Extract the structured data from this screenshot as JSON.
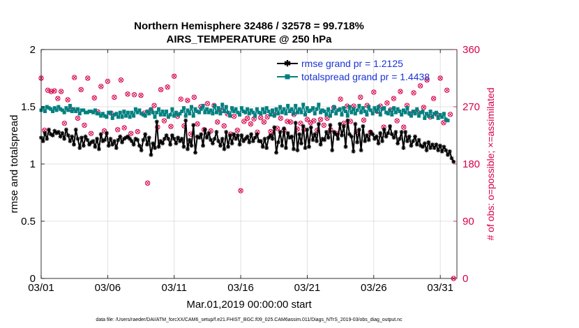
{
  "chart_data": {
    "type": "line",
    "title_line1": "Northern Hemisphere 32486 / 32578 = 99.718%",
    "title_line2": "AIRS_TEMPERATURE @ 250 hPa",
    "xlabel": "Mar.01,2019 00:00:00 start",
    "ylabel": "rmse and totalspread",
    "y2label": "# of obs: o=possible; ×=assimilated",
    "xlim": [
      0,
      31.25
    ],
    "ylim": [
      0,
      2
    ],
    "y2lim": [
      0,
      360
    ],
    "x_ticks": [
      {
        "x": 0,
        "label": "03/01"
      },
      {
        "x": 5,
        "label": "03/06"
      },
      {
        "x": 10,
        "label": "03/11"
      },
      {
        "x": 15,
        "label": "03/16"
      },
      {
        "x": 20,
        "label": "03/21"
      },
      {
        "x": 25,
        "label": "03/26"
      },
      {
        "x": 30,
        "label": "03/31"
      }
    ],
    "y_ticks": [
      {
        "v": 0,
        "label": "0"
      },
      {
        "v": 0.5,
        "label": "0.5"
      },
      {
        "v": 1,
        "label": "1"
      },
      {
        "v": 1.5,
        "label": "1.5"
      },
      {
        "v": 2,
        "label": "2"
      }
    ],
    "y2_ticks": [
      {
        "v": 0,
        "label": "0"
      },
      {
        "v": 90,
        "label": "90"
      },
      {
        "v": 180,
        "label": "180"
      },
      {
        "v": 270,
        "label": "270"
      },
      {
        "v": 360,
        "label": "360"
      }
    ],
    "legend": [
      {
        "label": "rmse grand pr = 1.2125",
        "color": "#000000"
      },
      {
        "label": "totalspread grand pr = 1.4438",
        "color": "#008080"
      }
    ],
    "rmse": [
      1.23,
      1.2,
      1.27,
      1.22,
      1.3,
      1.26,
      1.25,
      1.29,
      1.27,
      1.28,
      1.24,
      1.27,
      1.22,
      1.3,
      1.25,
      1.2,
      1.24,
      1.17,
      1.3,
      1.22,
      1.14,
      1.23,
      1.16,
      1.24,
      1.21,
      1.17,
      1.19,
      1.2,
      1.15,
      1.22,
      1.13,
      1.26,
      1.2,
      1.21,
      1.27,
      1.16,
      1.22,
      1.17,
      1.2,
      1.14,
      1.21,
      1.24,
      1.19,
      1.22,
      1.23,
      1.24,
      1.22,
      1.2,
      1.17,
      1.22,
      1.21,
      1.16,
      1.12,
      1.21,
      1.26,
      1.17,
      1.23,
      1.08,
      1.18,
      1.14,
      1.37,
      1.15,
      1.2,
      1.18,
      1.22,
      1.25,
      1.22,
      1.17,
      1.25,
      1.22,
      1.18,
      1.23,
      1.2,
      1.22,
      1.15,
      1.38,
      1.13,
      1.21,
      1.16,
      1.34,
      1.1,
      1.24,
      1.23,
      1.26,
      1.16,
      1.3,
      1.23,
      1.27,
      1.21,
      1.18,
      1.22,
      1.28,
      1.2,
      1.16,
      1.22,
      1.13,
      1.28,
      1.15,
      1.25,
      1.18,
      1.26,
      1.22,
      1.25,
      1.17,
      1.25,
      1.2,
      1.22,
      1.24,
      1.19,
      1.26,
      1.2,
      1.23,
      1.26,
      1.2,
      1.2,
      1.15,
      1.22,
      1.14,
      1.23,
      1.25,
      1.22,
      1.32,
      1.1,
      1.19,
      1.28,
      1.16,
      1.31,
      1.14,
      1.27,
      1.23,
      1.24,
      1.13,
      1.36,
      1.12,
      1.26,
      1.18,
      1.33,
      1.14,
      1.3,
      1.15,
      1.32,
      1.21,
      1.26,
      1.2,
      1.35,
      1.17,
      1.22,
      1.21,
      1.28,
      1.23,
      1.34,
      1.12,
      1.28,
      1.26,
      1.22,
      1.35,
      1.25,
      1.33,
      1.15,
      1.38,
      1.26,
      1.24,
      1.11,
      1.35,
      1.19,
      1.3,
      1.12,
      1.33,
      1.2,
      1.25,
      1.21,
      1.28,
      1.26,
      1.22,
      1.24,
      1.18,
      1.27,
      1.2,
      1.3,
      1.24,
      1.27,
      1.33,
      1.26,
      1.23,
      1.28,
      1.18,
      1.22,
      1.28,
      1.14,
      1.28,
      1.2,
      1.24,
      1.16,
      1.2,
      1.24,
      1.17,
      1.21,
      1.16,
      1.15,
      1.18,
      1.12,
      1.19,
      1.14,
      1.17,
      1.14,
      1.17,
      1.12,
      1.16,
      1.11,
      1.15,
      1.12,
      1.08,
      1.11,
      1.05,
      1.02
    ],
    "totalspread": [
      1.47,
      1.49,
      1.46,
      1.5,
      1.49,
      1.48,
      1.46,
      1.49,
      1.47,
      1.5,
      1.48,
      1.47,
      1.45,
      1.49,
      1.47,
      1.51,
      1.46,
      1.48,
      1.46,
      1.48,
      1.44,
      1.47,
      1.47,
      1.45,
      1.45,
      1.46,
      1.46,
      1.45,
      1.47,
      1.44,
      1.44,
      1.42,
      1.44,
      1.42,
      1.41,
      1.45,
      1.45,
      1.4,
      1.43,
      1.44,
      1.41,
      1.45,
      1.41,
      1.46,
      1.42,
      1.45,
      1.41,
      1.45,
      1.42,
      1.48,
      1.45,
      1.47,
      1.44,
      1.43,
      1.42,
      1.46,
      1.44,
      1.48,
      1.45,
      1.41,
      1.45,
      1.48,
      1.43,
      1.46,
      1.43,
      1.46,
      1.41,
      1.43,
      1.48,
      1.42,
      1.45,
      1.43,
      1.44,
      1.46,
      1.49,
      1.42,
      1.47,
      1.44,
      1.5,
      1.42,
      1.48,
      1.46,
      1.45,
      1.48,
      1.51,
      1.45,
      1.48,
      1.45,
      1.47,
      1.44,
      1.51,
      1.45,
      1.49,
      1.44,
      1.52,
      1.46,
      1.5,
      1.45,
      1.42,
      1.49,
      1.46,
      1.48,
      1.45,
      1.43,
      1.49,
      1.46,
      1.45,
      1.48,
      1.44,
      1.47,
      1.45,
      1.42,
      1.48,
      1.45,
      1.44,
      1.48,
      1.45,
      1.49,
      1.46,
      1.43,
      1.47,
      1.42,
      1.48,
      1.44,
      1.5,
      1.45,
      1.48,
      1.44,
      1.51,
      1.46,
      1.48,
      1.44,
      1.51,
      1.45,
      1.48,
      1.45,
      1.52,
      1.43,
      1.49,
      1.46,
      1.47,
      1.49,
      1.44,
      1.48,
      1.52,
      1.45,
      1.47,
      1.46,
      1.43,
      1.48,
      1.42,
      1.46,
      1.5,
      1.44,
      1.47,
      1.48,
      1.43,
      1.49,
      1.46,
      1.42,
      1.5,
      1.45,
      1.48,
      1.44,
      1.47,
      1.51,
      1.45,
      1.49,
      1.46,
      1.43,
      1.5,
      1.47,
      1.44,
      1.49,
      1.46,
      1.5,
      1.43,
      1.48,
      1.49,
      1.45,
      1.44,
      1.47,
      1.43,
      1.49,
      1.45,
      1.48,
      1.46,
      1.43,
      1.47,
      1.45,
      1.49,
      1.44,
      1.42,
      1.46,
      1.44,
      1.48,
      1.42,
      1.45,
      1.46,
      1.4,
      1.44,
      1.42,
      1.46,
      1.41,
      1.44,
      1.45,
      1.4,
      1.43,
      1.41,
      1.44,
      1.39,
      1.38
    ],
    "nobs": [
      [
        0.0,
        315
      ],
      [
        0.25,
        233
      ],
      [
        0.5,
        296
      ],
      [
        0.75,
        294
      ],
      [
        1.0,
        295
      ],
      [
        1.25,
        283
      ],
      [
        1.5,
        294
      ],
      [
        1.75,
        244
      ],
      [
        2.0,
        281
      ],
      [
        2.25,
        266
      ],
      [
        2.5,
        316
      ],
      [
        2.75,
        252
      ],
      [
        3.0,
        297
      ],
      [
        3.25,
        241
      ],
      [
        3.5,
        315
      ],
      [
        3.75,
        228
      ],
      [
        4.0,
        284
      ],
      [
        4.25,
        262
      ],
      [
        4.5,
        302
      ],
      [
        4.75,
        232
      ],
      [
        5.0,
        310
      ],
      [
        5.25,
        260
      ],
      [
        5.5,
        285
      ],
      [
        5.75,
        234
      ],
      [
        6.0,
        312
      ],
      [
        6.25,
        237
      ],
      [
        6.5,
        290
      ],
      [
        6.75,
        228
      ],
      [
        7.0,
        289
      ],
      [
        7.25,
        231
      ],
      [
        7.5,
        288
      ],
      [
        7.75,
        260
      ],
      [
        8.0,
        150
      ],
      [
        8.25,
        265
      ],
      [
        8.5,
        272
      ],
      [
        8.75,
        238
      ],
      [
        9.0,
        297
      ],
      [
        9.25,
        248
      ],
      [
        9.5,
        301
      ],
      [
        9.75,
        239
      ],
      [
        10.0,
        318
      ],
      [
        10.25,
        255
      ],
      [
        10.5,
        282
      ],
      [
        10.75,
        240
      ],
      [
        11.0,
        280
      ],
      [
        11.25,
        227
      ],
      [
        11.5,
        285
      ],
      [
        11.75,
        243
      ],
      [
        12.0,
        270
      ],
      [
        12.25,
        234
      ],
      [
        12.5,
        275
      ],
      [
        12.75,
        232
      ],
      [
        13.0,
        272
      ],
      [
        13.25,
        246
      ],
      [
        13.5,
        264
      ],
      [
        13.75,
        240
      ],
      [
        14.0,
        259
      ],
      [
        14.25,
        227
      ],
      [
        14.5,
        255
      ],
      [
        14.75,
        233
      ],
      [
        15.0,
        138
      ],
      [
        15.25,
        247
      ],
      [
        15.5,
        252
      ],
      [
        15.75,
        243
      ],
      [
        16.0,
        251
      ],
      [
        16.25,
        230
      ],
      [
        16.5,
        253
      ],
      [
        16.75,
        246
      ],
      [
        17.0,
        254
      ],
      [
        17.25,
        231
      ],
      [
        17.5,
        258
      ],
      [
        17.75,
        236
      ],
      [
        18.0,
        252
      ],
      [
        18.25,
        233
      ],
      [
        18.5,
        247
      ],
      [
        18.75,
        246
      ],
      [
        19.0,
        258
      ],
      [
        19.25,
        235
      ],
      [
        19.5,
        244
      ],
      [
        19.75,
        234
      ],
      [
        20.0,
        250
      ],
      [
        20.25,
        245
      ],
      [
        20.5,
        248
      ],
      [
        20.75,
        233
      ],
      [
        21.0,
        250
      ],
      [
        21.25,
        241
      ],
      [
        21.5,
        252
      ],
      [
        21.75,
        234
      ],
      [
        22.0,
        269
      ],
      [
        22.25,
        228
      ],
      [
        22.5,
        282
      ],
      [
        22.75,
        244
      ],
      [
        23.0,
        271
      ],
      [
        23.25,
        247
      ],
      [
        23.5,
        271
      ],
      [
        23.75,
        230
      ],
      [
        24.0,
        285
      ],
      [
        24.25,
        249
      ],
      [
        24.5,
        272
      ],
      [
        24.75,
        230
      ],
      [
        25.0,
        293
      ],
      [
        25.25,
        263
      ],
      [
        25.5,
        271
      ],
      [
        25.75,
        238
      ],
      [
        26.0,
        276
      ],
      [
        26.25,
        265
      ],
      [
        26.5,
        283
      ],
      [
        26.75,
        248
      ],
      [
        27.0,
        294
      ],
      [
        27.25,
        238
      ],
      [
        27.5,
        272
      ],
      [
        27.75,
        259
      ],
      [
        28.0,
        292
      ],
      [
        28.25,
        263
      ],
      [
        28.5,
        303
      ],
      [
        28.75,
        269
      ],
      [
        29.0,
        312
      ],
      [
        29.25,
        254
      ],
      [
        29.5,
        283
      ],
      [
        29.75,
        258
      ],
      [
        30.0,
        315
      ],
      [
        30.25,
        245
      ],
      [
        30.5,
        296
      ],
      [
        30.75,
        258
      ],
      [
        31.0,
        0
      ]
    ],
    "footer": "data file: /Users/raeder/DAI/ATM_forcXX/CAM6_setup/f.e21.FHIST_BGC.f09_025.CAM6assim.011/Diags_NTrS_2019-03/obs_diag_output.nc"
  },
  "colors": {
    "rmse": "#000000",
    "spread": "#008080",
    "nobs": "#d6004a",
    "legend_text": "#1a33d6",
    "grid": "#d9d9d9"
  }
}
